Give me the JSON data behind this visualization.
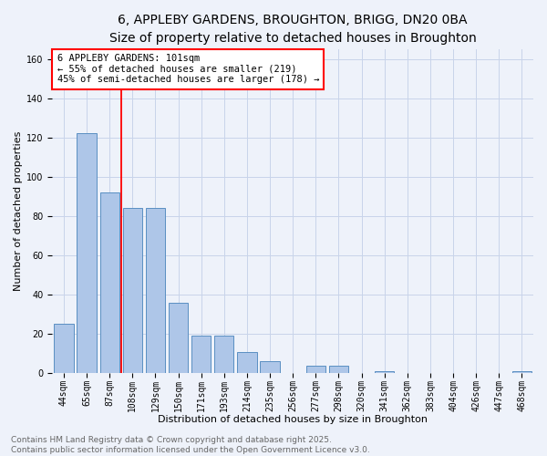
{
  "title_line1": "6, APPLEBY GARDENS, BROUGHTON, BRIGG, DN20 0BA",
  "title_line2": "Size of property relative to detached houses in Broughton",
  "xlabel": "Distribution of detached houses by size in Broughton",
  "ylabel": "Number of detached properties",
  "categories": [
    "44sqm",
    "65sqm",
    "87sqm",
    "108sqm",
    "129sqm",
    "150sqm",
    "171sqm",
    "193sqm",
    "214sqm",
    "235sqm",
    "256sqm",
    "277sqm",
    "298sqm",
    "320sqm",
    "341sqm",
    "362sqm",
    "383sqm",
    "404sqm",
    "426sqm",
    "447sqm",
    "468sqm"
  ],
  "values": [
    25,
    122,
    92,
    84,
    84,
    36,
    19,
    19,
    11,
    6,
    0,
    4,
    4,
    0,
    1,
    0,
    0,
    0,
    0,
    0,
    1
  ],
  "bar_color": "#aec6e8",
  "bar_edge_color": "#5a8fc2",
  "vline_x": 2.5,
  "vline_color": "red",
  "annotation_text": "6 APPLEBY GARDENS: 101sqm\n← 55% of detached houses are smaller (219)\n45% of semi-detached houses are larger (178) →",
  "annotation_box_color": "white",
  "annotation_box_edge": "red",
  "ylim": [
    0,
    165
  ],
  "yticks": [
    0,
    20,
    40,
    60,
    80,
    100,
    120,
    140,
    160
  ],
  "bg_color": "#eef2fa",
  "grid_color": "#c8d4ea",
  "footer_text": "Contains HM Land Registry data © Crown copyright and database right 2025.\nContains public sector information licensed under the Open Government Licence v3.0.",
  "title_fontsize": 10,
  "subtitle_fontsize": 9,
  "axis_label_fontsize": 8,
  "tick_fontsize": 7,
  "annotation_fontsize": 7.5,
  "footer_fontsize": 6.5
}
